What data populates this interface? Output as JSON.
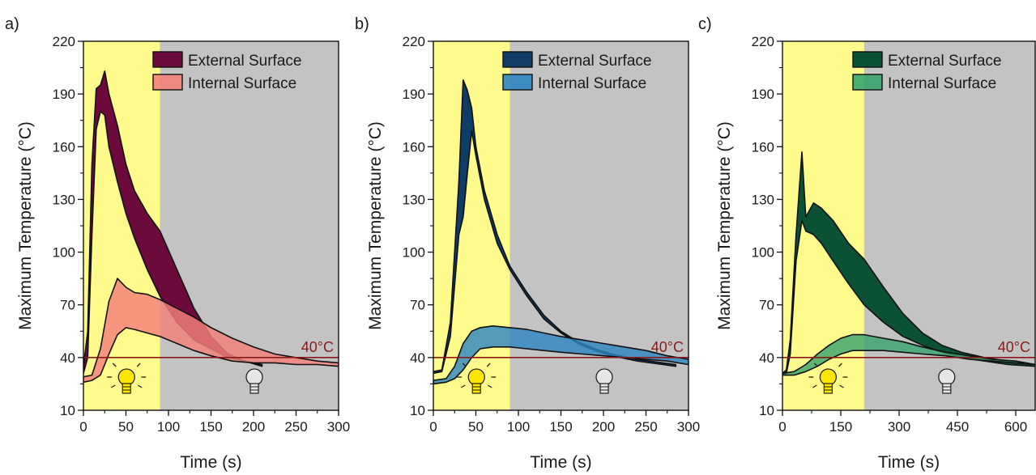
{
  "chart_data": [
    {
      "type": "area",
      "panel_label": "a)",
      "xlabel": "Time (s)",
      "ylabel": "Maximum Temperature (°C)",
      "xlim": [
        0,
        300
      ],
      "ylim": [
        10,
        220
      ],
      "xticks": [
        0,
        50,
        100,
        150,
        200,
        250,
        300
      ],
      "yticks": [
        10,
        40,
        70,
        100,
        130,
        160,
        190,
        220
      ],
      "light_on_until": 90,
      "reference_line": {
        "y": 40,
        "label": "40°C",
        "color": "#8b1a1a"
      },
      "legend_position": "top-right",
      "series": [
        {
          "name": "External Surface",
          "color": "#6b0a3b",
          "x": [
            0,
            5,
            10,
            15,
            20,
            25,
            30,
            40,
            50,
            60,
            75,
            90,
            110,
            130,
            150,
            170,
            190,
            210
          ],
          "upper": [
            35,
            55,
            150,
            193,
            195,
            203,
            190,
            172,
            150,
            135,
            122,
            112,
            90,
            68,
            52,
            42,
            38,
            36
          ],
          "lower": [
            31,
            40,
            110,
            170,
            180,
            178,
            160,
            140,
            122,
            108,
            90,
            75,
            60,
            50,
            45,
            40,
            38,
            35
          ]
        },
        {
          "name": "Internal Surface",
          "color": "#f4817a",
          "x": [
            0,
            10,
            20,
            30,
            40,
            50,
            60,
            75,
            90,
            110,
            130,
            150,
            175,
            200,
            225,
            250,
            275,
            300
          ],
          "upper": [
            29,
            30,
            45,
            72,
            85,
            80,
            77,
            76,
            73,
            68,
            63,
            57,
            51,
            46,
            42,
            40,
            38,
            37
          ],
          "lower": [
            26,
            27,
            30,
            42,
            53,
            57,
            56,
            54,
            52,
            48,
            44,
            41,
            38,
            37,
            37,
            36,
            36,
            35
          ]
        }
      ]
    },
    {
      "type": "area",
      "panel_label": "b)",
      "xlabel": "Time (s)",
      "ylabel": "Maximum Temperature (°C)",
      "xlim": [
        0,
        300
      ],
      "ylim": [
        10,
        220
      ],
      "xticks": [
        0,
        50,
        100,
        150,
        200,
        250,
        300
      ],
      "yticks": [
        10,
        40,
        70,
        100,
        130,
        160,
        190,
        220
      ],
      "light_on_until": 90,
      "reference_line": {
        "y": 40,
        "label": "40°C",
        "color": "#8b1a1a"
      },
      "legend_position": "top-right",
      "series": [
        {
          "name": "External Surface",
          "color": "#0f3d66",
          "x": [
            0,
            10,
            20,
            30,
            35,
            40,
            45,
            50,
            60,
            75,
            90,
            110,
            130,
            150,
            170,
            190,
            210,
            240,
            270,
            285
          ],
          "upper": [
            32,
            33,
            60,
            140,
            198,
            192,
            182,
            160,
            135,
            110,
            92,
            77,
            64,
            55,
            49,
            45,
            42,
            39,
            37,
            36
          ],
          "lower": [
            31,
            32,
            52,
            110,
            120,
            145,
            169,
            155,
            130,
            105,
            90,
            75,
            62,
            54,
            48,
            44,
            41,
            38,
            36,
            35
          ]
        },
        {
          "name": "Internal Surface",
          "color": "#2e86c1",
          "x": [
            0,
            15,
            25,
            35,
            45,
            55,
            70,
            90,
            110,
            130,
            150,
            175,
            200,
            225,
            250,
            275,
            300
          ],
          "upper": [
            27,
            28,
            35,
            48,
            55,
            57,
            58,
            57,
            56,
            54,
            52,
            50,
            48,
            46,
            44,
            41,
            39
          ],
          "lower": [
            25,
            26,
            28,
            33,
            40,
            45,
            46,
            46,
            45,
            44,
            43,
            42,
            41,
            40,
            39,
            38,
            36
          ]
        }
      ]
    },
    {
      "type": "area",
      "panel_label": "c)",
      "xlabel": "Time (s)",
      "ylabel": "Maximum Temperature (°C)",
      "xlim": [
        0,
        650
      ],
      "ylim": [
        10,
        220
      ],
      "xticks": [
        0,
        150,
        300,
        450,
        600
      ],
      "yticks": [
        10,
        40,
        70,
        100,
        130,
        160,
        190,
        220
      ],
      "light_on_until": 210,
      "reference_line": {
        "y": 40,
        "label": "40°C",
        "color": "#8b1a1a"
      },
      "legend_position": "top-right",
      "series": [
        {
          "name": "External Surface",
          "color": "#0b5133",
          "x": [
            0,
            10,
            20,
            35,
            50,
            60,
            80,
            100,
            130,
            170,
            210,
            260,
            310,
            360,
            410,
            460,
            520,
            580,
            650
          ],
          "upper": [
            31,
            33,
            50,
            110,
            157,
            120,
            128,
            125,
            118,
            105,
            96,
            80,
            65,
            54,
            47,
            43,
            40,
            38,
            36
          ],
          "lower": [
            30,
            31,
            42,
            95,
            118,
            112,
            110,
            105,
            95,
            82,
            70,
            60,
            52,
            47,
            43,
            40,
            38,
            36,
            35
          ]
        },
        {
          "name": "Internal Surface",
          "color": "#3aa56e",
          "x": [
            0,
            30,
            60,
            90,
            120,
            150,
            180,
            210,
            260,
            310,
            360,
            420,
            480,
            540,
            600,
            650
          ],
          "upper": [
            31,
            32,
            36,
            42,
            47,
            51,
            53,
            53,
            51,
            49,
            46,
            43,
            41,
            39,
            38,
            36
          ],
          "lower": [
            30,
            30,
            32,
            35,
            39,
            42,
            44,
            44,
            44,
            43,
            42,
            41,
            39,
            38,
            37,
            36
          ]
        }
      ]
    }
  ]
}
